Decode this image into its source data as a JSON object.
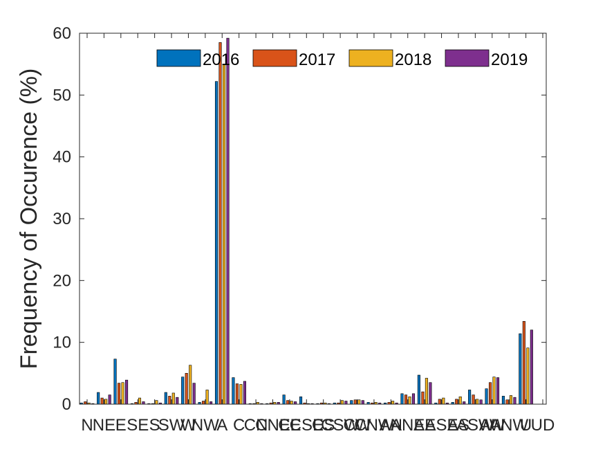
{
  "chart_data": {
    "type": "bar",
    "title": "",
    "xlabel": "",
    "ylabel": "Frequency of Occurence (%)",
    "ylim": [
      0,
      60
    ],
    "yticks": [
      0,
      10,
      20,
      30,
      40,
      50,
      60
    ],
    "grid": false,
    "legend_position": "top-right",
    "categories": [
      "N",
      "NE",
      "E",
      "SE",
      "S",
      "SW",
      "W",
      "NW",
      "A",
      "C",
      "CN",
      "CNE",
      "CE",
      "CSE",
      "CS",
      "CSW",
      "CW",
      "CNW",
      "AN",
      "ANE",
      "AE",
      "ASE",
      "AS",
      "ASW",
      "AW",
      "ANW",
      "U",
      "UD"
    ],
    "series": [
      {
        "name": "2016",
        "color": "#0072BD",
        "values": [
          0.2,
          1.9,
          7.3,
          0.1,
          0.1,
          1.9,
          4.4,
          0.3,
          52.2,
          4.3,
          0.1,
          0.1,
          1.5,
          1.2,
          0.1,
          0.2,
          0.6,
          0.3,
          0.2,
          1.7,
          4.7,
          0.2,
          0.3,
          2.3,
          2.5,
          1.3,
          11.4,
          0
        ]
      },
      {
        "name": "2017",
        "color": "#D95319",
        "values": [
          0.4,
          1.0,
          3.4,
          0.3,
          0.1,
          1.3,
          5.0,
          0.5,
          58.5,
          3.3,
          0.1,
          0.2,
          0.6,
          0.2,
          0.2,
          0.2,
          0.7,
          0.2,
          0.3,
          1.5,
          2.0,
          0.8,
          0.8,
          1.5,
          3.5,
          0.7,
          13.4,
          0
        ]
      },
      {
        "name": "2018",
        "color": "#EDB120",
        "values": [
          0.2,
          0.8,
          3.5,
          1.0,
          0.6,
          1.8,
          6.3,
          2.3,
          55.0,
          3.2,
          0.3,
          0.3,
          0.5,
          0.1,
          0.2,
          0.6,
          0.7,
          0.3,
          0.5,
          1.2,
          4.2,
          1.0,
          1.2,
          0.8,
          4.4,
          1.4,
          9.1,
          0
        ]
      },
      {
        "name": "2019",
        "color": "#7E2F8E",
        "values": [
          0.1,
          1.5,
          3.9,
          0.4,
          0.2,
          1.1,
          3.4,
          0.4,
          59.2,
          3.7,
          0.1,
          0.3,
          0.4,
          0.1,
          0.1,
          0.5,
          0.6,
          0.2,
          0.2,
          1.7,
          3.5,
          0.2,
          0.4,
          0.7,
          4.3,
          1.1,
          12.0,
          0
        ]
      }
    ]
  }
}
